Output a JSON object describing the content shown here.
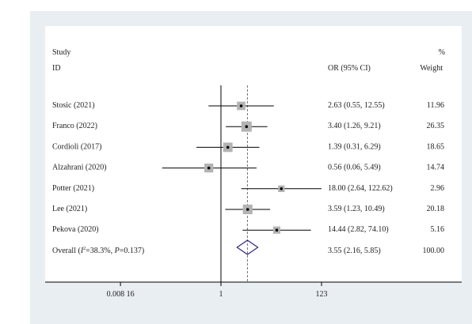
{
  "header": {
    "study_label": "Study",
    "id_label": "ID",
    "effect_label": "OR (95% CI)",
    "pct_label": "%",
    "weight_label": "Weight"
  },
  "chart_data": {
    "type": "forest",
    "x_scale": "log",
    "xlim": [
      0.008,
      123
    ],
    "ticks": [
      {
        "value": 0.00816,
        "label": "0.008 16"
      },
      {
        "value": 1,
        "label": "1"
      },
      {
        "value": 123,
        "label": "123"
      }
    ],
    "null_line": 1,
    "overall_line": 3.55,
    "studies": [
      {
        "name": "Stosic (2021)",
        "or": 2.63,
        "lo": 0.55,
        "hi": 12.55,
        "ci_text": "2.63 (0.55, 12.55)",
        "weight": 11.96,
        "weight_text": "11.96"
      },
      {
        "name": "Franco (2022)",
        "or": 3.4,
        "lo": 1.26,
        "hi": 9.21,
        "ci_text": "3.40 (1.26, 9.21)",
        "weight": 26.35,
        "weight_text": "26.35"
      },
      {
        "name": "Cordioli (2017)",
        "or": 1.39,
        "lo": 0.31,
        "hi": 6.29,
        "ci_text": "1.39 (0.31, 6.29)",
        "weight": 18.65,
        "weight_text": "18.65"
      },
      {
        "name": "Alzahrani (2020)",
        "or": 0.56,
        "lo": 0.06,
        "hi": 5.49,
        "ci_text": "0.56 (0.06, 5.49)",
        "weight": 14.74,
        "weight_text": "14.74"
      },
      {
        "name": "Potter (2021)",
        "or": 18.0,
        "lo": 2.64,
        "hi": 122.62,
        "ci_text": "18.00 (2.64, 122.62)",
        "weight": 2.96,
        "weight_text": "2.96"
      },
      {
        "name": "Lee (2021)",
        "or": 3.59,
        "lo": 1.23,
        "hi": 10.49,
        "ci_text": "3.59 (1.23, 10.49)",
        "weight": 20.18,
        "weight_text": "20.18"
      },
      {
        "name": "Pekova (2020)",
        "or": 14.44,
        "lo": 2.82,
        "hi": 74.1,
        "ci_text": "14.44 (2.82, 74.10)",
        "weight": 5.16,
        "weight_text": "5.16"
      }
    ],
    "overall": {
      "label_prefix": "Overall (",
      "i2_symbol": "I",
      "i2_sup": "2",
      "i2_rest": "=38.3%, ",
      "p_symbol": "P",
      "p_rest": "=0.137)",
      "or": 3.55,
      "lo": 2.16,
      "hi": 5.85,
      "ci_text": "3.55 (2.16, 5.85)",
      "weight_text": "100.00"
    },
    "colors": {
      "box": "#b3b3b3",
      "line": "#000000",
      "overall_line": "#c0504d",
      "diamond": "#2e2a7c"
    }
  }
}
